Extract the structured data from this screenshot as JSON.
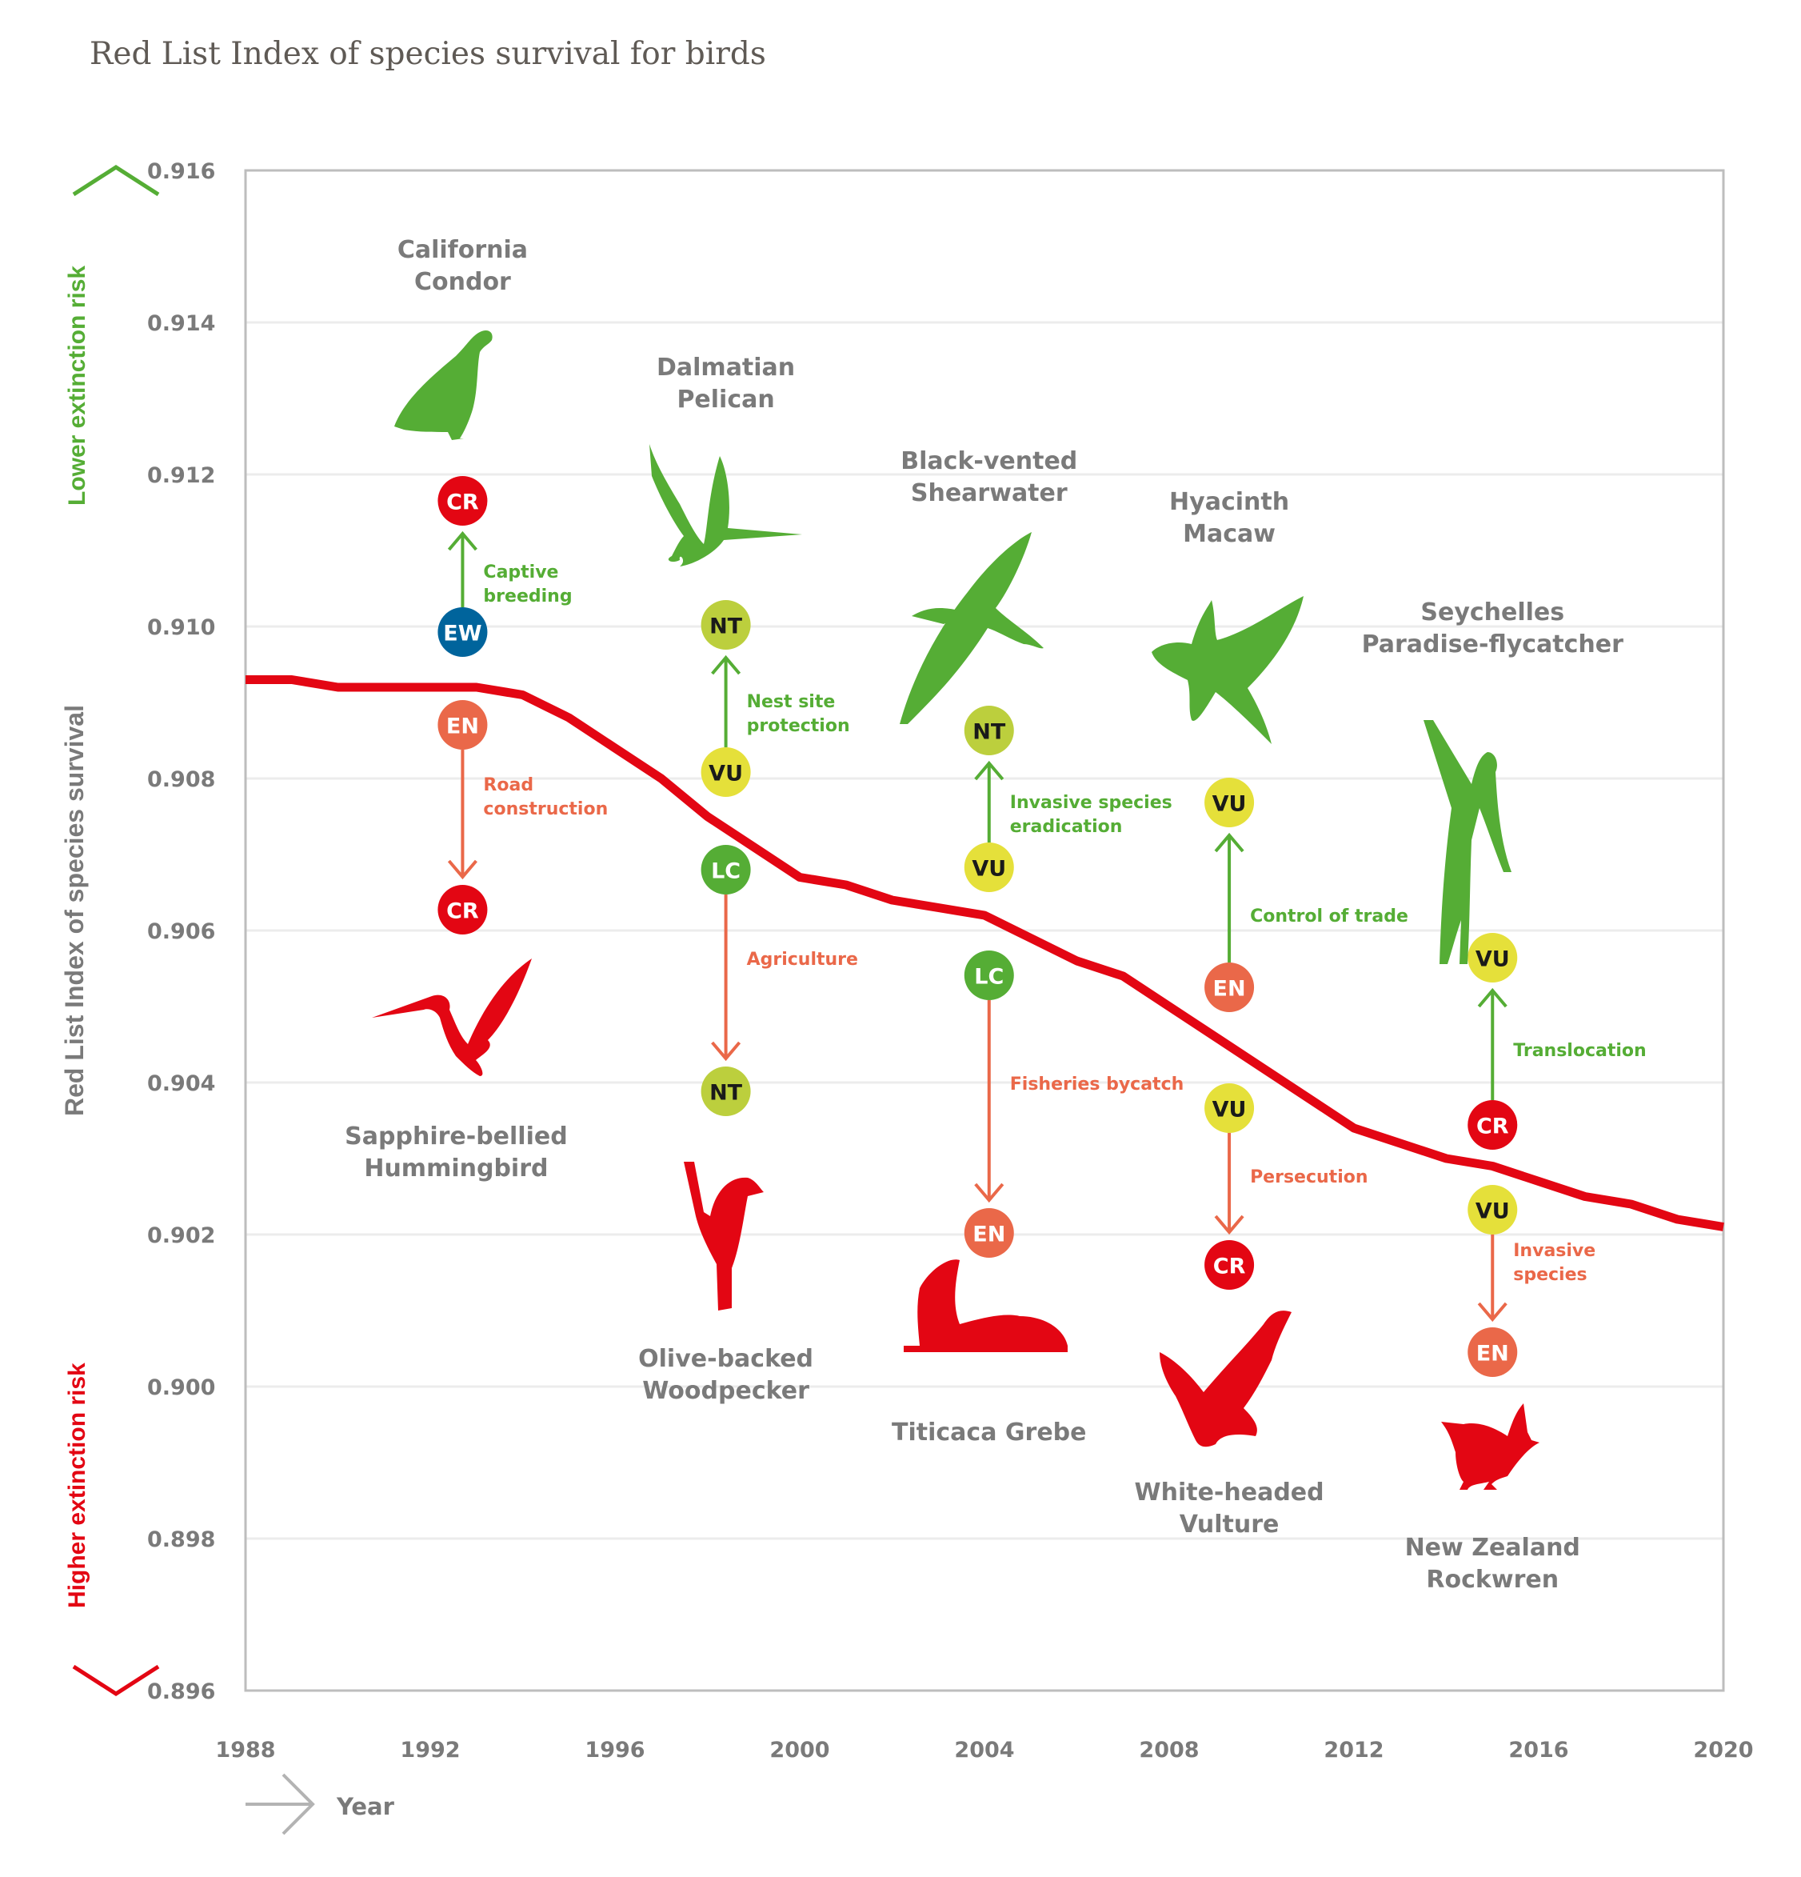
{
  "chart_data": {
    "type": "line",
    "title": "Red List Index of species survival for birds",
    "xlabel": "Year",
    "ylabel": "Red List Index of species survival",
    "ylabel_upper": "Lower extinction risk",
    "ylabel_lower": "Higher extinction risk",
    "xlim": [
      1988,
      2020
    ],
    "ylim": [
      0.896,
      0.916
    ],
    "x_ticks": [
      "1988",
      "1992",
      "1996",
      "2000",
      "2004",
      "2008",
      "2012",
      "2016",
      "2020"
    ],
    "y_ticks": [
      "0.916",
      "0.914",
      "0.912",
      "0.910",
      "0.908",
      "0.906",
      "0.904",
      "0.902",
      "0.900",
      "0.898",
      "0.896"
    ],
    "grid": true,
    "series": [
      {
        "name": "Red List Index (birds)",
        "color": "#e30613",
        "x": [
          1988,
          1989,
          1990,
          1991,
          1992,
          1993,
          1994,
          1995,
          1996,
          1997,
          1998,
          1999,
          2000,
          2001,
          2002,
          2003,
          2004,
          2005,
          2006,
          2007,
          2008,
          2009,
          2010,
          2011,
          2012,
          2013,
          2014,
          2015,
          2016,
          2017,
          2018,
          2019,
          2020
        ],
        "y": [
          0.9093,
          0.9093,
          0.9092,
          0.9092,
          0.9092,
          0.9092,
          0.9091,
          0.9088,
          0.9084,
          0.908,
          0.9075,
          0.9071,
          0.9067,
          0.9066,
          0.9064,
          0.9063,
          0.9062,
          0.9059,
          0.9056,
          0.9054,
          0.905,
          0.9046,
          0.9042,
          0.9038,
          0.9034,
          0.9032,
          0.903,
          0.9029,
          0.9027,
          0.9025,
          0.9024,
          0.9022,
          0.9021
        ]
      }
    ],
    "status_colors": {
      "EW": "#00649c",
      "CR": "#e30613",
      "EN": "#ea6849",
      "VU": "#e5e03a",
      "NT": "#bccf3d",
      "LC": "#55ad35"
    },
    "improvement_color": "#55ad35",
    "decline_color": "#ea6849",
    "annotations": [
      {
        "species": "California Condor",
        "species_lines": [
          "California",
          "Condor"
        ],
        "trend": "improved",
        "from": "EW",
        "to": "CR",
        "action_lines": [
          "Captive",
          "breeding"
        ],
        "year": 1992.7
      },
      {
        "species": "Sapphire-bellied Hummingbird",
        "species_lines": [
          "Sapphire-bellied",
          "Hummingbird"
        ],
        "trend": "declined",
        "from": "EN",
        "to": "CR",
        "action_lines": [
          "Road",
          "construction"
        ],
        "year": 1992.7
      },
      {
        "species": "Dalmatian Pelican",
        "species_lines": [
          "Dalmatian",
          "Pelican"
        ],
        "trend": "improved",
        "from": "VU",
        "to": "NT",
        "action_lines": [
          "Nest site",
          "protection"
        ],
        "year": 1998.4
      },
      {
        "species": "Olive-backed Woodpecker",
        "species_lines": [
          "Olive-backed",
          "Woodpecker"
        ],
        "trend": "declined",
        "from": "LC",
        "to": "NT",
        "action_lines": [
          "Agriculture"
        ],
        "year": 1998.4
      },
      {
        "species": "Black-vented Shearwater",
        "species_lines": [
          "Black-vented",
          "Shearwater"
        ],
        "trend": "improved",
        "from": "VU",
        "to": "NT",
        "action_lines": [
          "Invasive species",
          "eradication"
        ],
        "year": 2004.1
      },
      {
        "species": "Titicaca Grebe",
        "species_lines": [
          "Titicaca Grebe"
        ],
        "trend": "declined",
        "from": "LC",
        "to": "EN",
        "action_lines": [
          "Fisheries bycatch"
        ],
        "year": 2004.1
      },
      {
        "species": "Hyacinth Macaw",
        "species_lines": [
          "Hyacinth",
          "Macaw"
        ],
        "trend": "improved",
        "from": "EN",
        "to": "VU",
        "action_lines": [
          "Control of trade"
        ],
        "year": 2009.3
      },
      {
        "species": "White-headed Vulture",
        "species_lines": [
          "White-headed",
          "Vulture"
        ],
        "trend": "declined",
        "from": "VU",
        "to": "CR",
        "action_lines": [
          "Persecution"
        ],
        "year": 2009.3
      },
      {
        "species": "Seychelles Paradise-flycatcher",
        "species_lines": [
          "Seychelles",
          "Paradise-flycatcher"
        ],
        "trend": "improved",
        "from": "CR",
        "to": "VU",
        "action_lines": [
          "Translocation"
        ],
        "year": 2015.0
      },
      {
        "species": "New Zealand Rockwren",
        "species_lines": [
          "New Zealand",
          "Rockwren"
        ],
        "trend": "declined",
        "from": "VU",
        "to": "EN",
        "action_lines": [
          "Invasive",
          "species"
        ],
        "year": 2015.0
      }
    ]
  },
  "icons": {
    "california_condor": "condor-silhouette-icon",
    "sapphire_bellied_hummingbird": "hummingbird-silhouette-icon",
    "dalmatian_pelican": "pelican-silhouette-icon",
    "olive_backed_woodpecker": "woodpecker-silhouette-icon",
    "black_vented_shearwater": "shearwater-silhouette-icon",
    "titicaca_grebe": "grebe-silhouette-icon",
    "hyacinth_macaw": "macaw-silhouette-icon",
    "white_headed_vulture": "vulture-silhouette-icon",
    "seychelles_paradise_flycatcher": "flycatcher-silhouette-icon",
    "new_zealand_rockwren": "rockwren-silhouette-icon"
  }
}
